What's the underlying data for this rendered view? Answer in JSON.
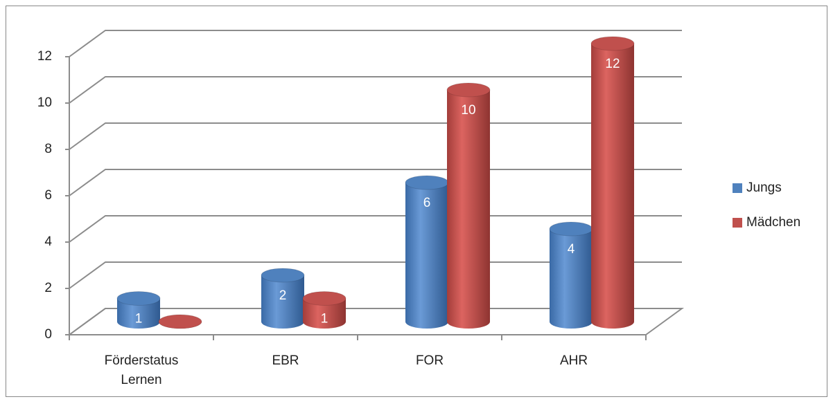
{
  "chart_data": {
    "type": "bar3d",
    "categories": [
      "Förderstatus Lernen",
      "EBR",
      "FOR",
      "AHR"
    ],
    "series": [
      {
        "name": "Jungs",
        "color": "#4f81bd",
        "values": [
          1,
          2,
          6,
          4
        ]
      },
      {
        "name": "Mädchen",
        "color": "#c0504d",
        "values": [
          0,
          1,
          10,
          12
        ]
      }
    ],
    "ylim": [
      0,
      12
    ],
    "yticks": [
      0,
      2,
      4,
      6,
      8,
      10,
      12
    ],
    "grid": true,
    "legend": "right"
  }
}
